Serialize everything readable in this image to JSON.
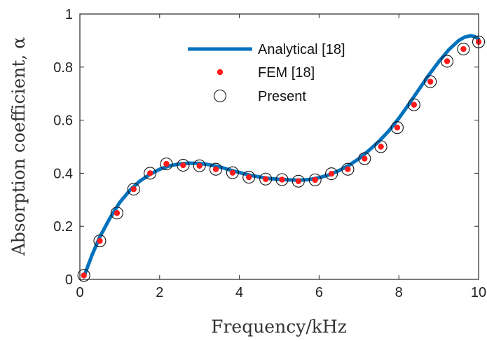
{
  "chart_data": {
    "type": "line",
    "xlabel": "Frequency/kHz",
    "ylabel": "Absorption coefficient, α",
    "xlim": [
      0,
      10
    ],
    "ylim": [
      0,
      1
    ],
    "xticks": [
      "0",
      "2",
      "4",
      "6",
      "8",
      "10"
    ],
    "yticks": [
      "0",
      "0.2",
      "0.4",
      "0.6",
      "0.8",
      "1"
    ],
    "grid": false,
    "legend_position": "top-center",
    "series": [
      {
        "name": "Analytical [18]",
        "style": "line",
        "color": "#0072BD",
        "x": [
          0.1,
          0.3,
          0.5,
          0.75,
          1.0,
          1.25,
          1.5,
          1.75,
          2.0,
          2.25,
          2.5,
          2.75,
          3.0,
          3.25,
          3.5,
          3.75,
          4.0,
          4.25,
          4.5,
          4.75,
          5.0,
          5.25,
          5.5,
          5.75,
          6.0,
          6.25,
          6.5,
          6.75,
          7.0,
          7.25,
          7.5,
          7.75,
          8.0,
          8.25,
          8.5,
          8.75,
          9.0,
          9.25,
          9.5,
          9.65,
          9.8,
          9.9,
          10.0
        ],
        "y": [
          0.01,
          0.09,
          0.16,
          0.23,
          0.29,
          0.335,
          0.37,
          0.395,
          0.415,
          0.428,
          0.435,
          0.438,
          0.437,
          0.432,
          0.424,
          0.413,
          0.403,
          0.393,
          0.386,
          0.38,
          0.377,
          0.375,
          0.374,
          0.376,
          0.383,
          0.394,
          0.41,
          0.43,
          0.455,
          0.486,
          0.52,
          0.56,
          0.607,
          0.66,
          0.715,
          0.77,
          0.82,
          0.865,
          0.9,
          0.913,
          0.918,
          0.915,
          0.905
        ]
      },
      {
        "name": "FEM [18]",
        "style": "marker-dot",
        "color": "#ff1a1a",
        "x": [
          0.1,
          0.5,
          0.93,
          1.35,
          1.76,
          2.17,
          2.59,
          3.0,
          3.41,
          3.83,
          4.24,
          4.66,
          5.07,
          5.48,
          5.9,
          6.31,
          6.72,
          7.14,
          7.55,
          7.96,
          8.38,
          8.79,
          9.21,
          9.62,
          10.0
        ],
        "y": [
          0.015,
          0.145,
          0.25,
          0.34,
          0.4,
          0.435,
          0.43,
          0.428,
          0.415,
          0.402,
          0.385,
          0.378,
          0.376,
          0.37,
          0.375,
          0.398,
          0.415,
          0.455,
          0.5,
          0.572,
          0.658,
          0.745,
          0.822,
          0.868,
          0.895
        ]
      },
      {
        "name": "Present",
        "style": "marker-circle",
        "color": "#111111",
        "x": [
          0.1,
          0.5,
          0.93,
          1.35,
          1.76,
          2.17,
          2.59,
          3.0,
          3.41,
          3.83,
          4.24,
          4.66,
          5.07,
          5.48,
          5.9,
          6.31,
          6.72,
          7.14,
          7.55,
          7.96,
          8.38,
          8.79,
          9.21,
          9.62,
          10.0
        ],
        "y": [
          0.015,
          0.145,
          0.25,
          0.34,
          0.4,
          0.435,
          0.43,
          0.428,
          0.415,
          0.402,
          0.385,
          0.378,
          0.376,
          0.37,
          0.375,
          0.398,
          0.415,
          0.455,
          0.5,
          0.572,
          0.658,
          0.745,
          0.822,
          0.868,
          0.895
        ]
      }
    ]
  }
}
